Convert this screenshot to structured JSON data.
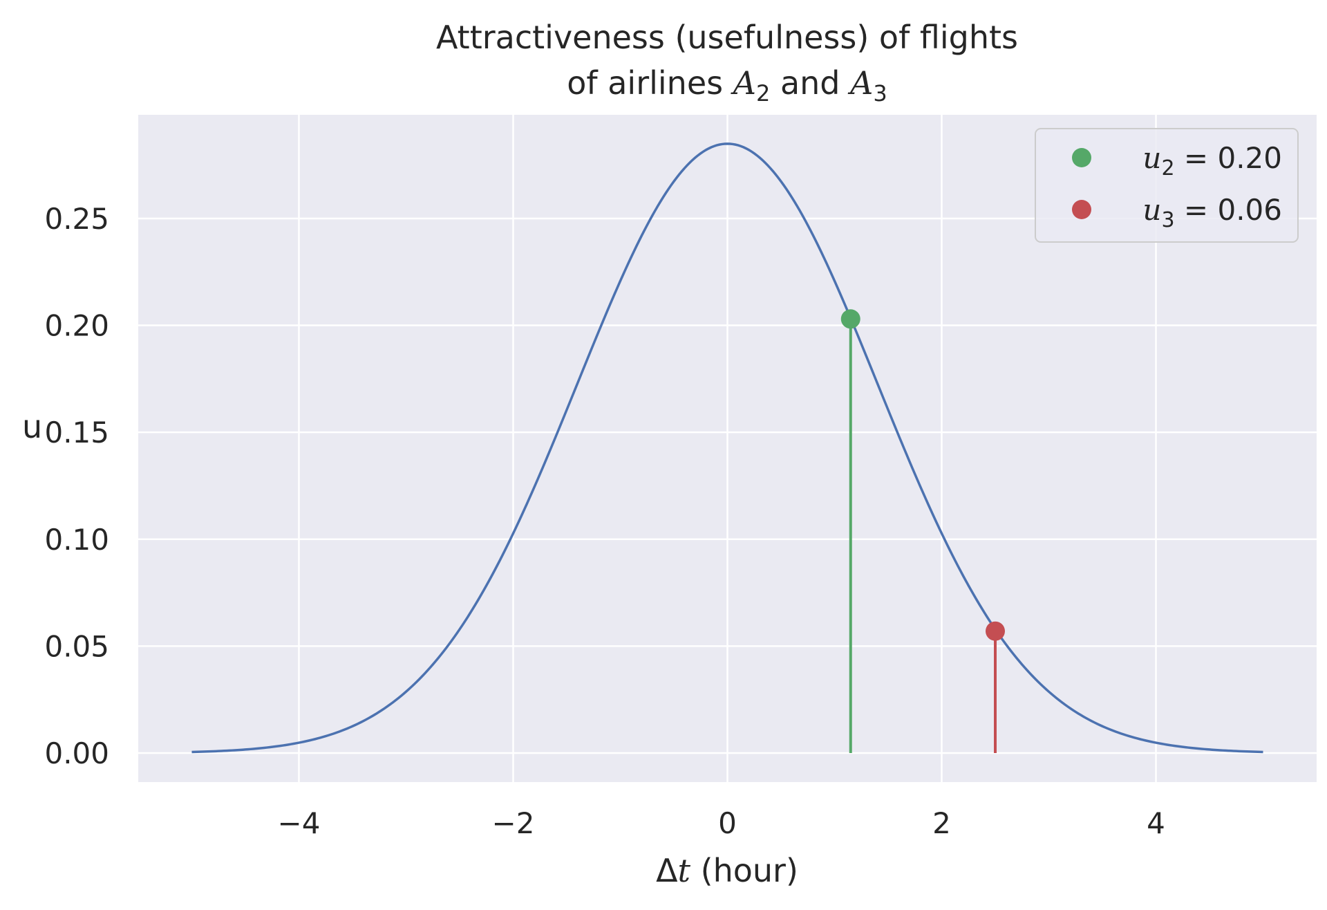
{
  "chart_data": {
    "type": "line",
    "title_line1": "Attractiveness (usefulness) of flights",
    "title_line2": {
      "prefix": "of airlines ",
      "sym_a": "A",
      "sub_a": "2",
      "middle": " and ",
      "sym_b": "A",
      "sub_b": "3"
    },
    "xlabel": {
      "symbol": "Δ",
      "var": "t",
      "unit": " (hour)"
    },
    "ylabel": "u",
    "xlim": [
      -5.5,
      5.5
    ],
    "ylim": [
      -0.0136,
      0.2985
    ],
    "x_ticks": [
      -4,
      -2,
      0,
      2,
      4
    ],
    "x_tick_labels": [
      "−4",
      "−2",
      "0",
      "2",
      "4"
    ],
    "y_ticks": [
      0.0,
      0.05,
      0.1,
      0.15,
      0.2,
      0.25
    ],
    "y_tick_labels": [
      "0.00",
      "0.05",
      "0.10",
      "0.15",
      "0.20",
      "0.25"
    ],
    "grid": true,
    "legend_position": "top-right",
    "curve": {
      "function": "normal_pdf",
      "mean": 0,
      "std": 1.4,
      "x_range": [
        -5,
        5
      ],
      "color": "#4c72b0"
    },
    "points": [
      {
        "x": 1.15,
        "y": 0.203,
        "color": "#55a868",
        "legend": {
          "var": "u",
          "sub": "2",
          "value": " = 0.20"
        }
      },
      {
        "x": 2.5,
        "y": 0.057,
        "color": "#c44e52",
        "legend": {
          "var": "u",
          "sub": "3",
          "value": " = 0.06"
        }
      }
    ],
    "colors": {
      "plot_background": "#eaeaf2",
      "grid": "#ffffff",
      "legend_border": "#cccccc"
    }
  }
}
